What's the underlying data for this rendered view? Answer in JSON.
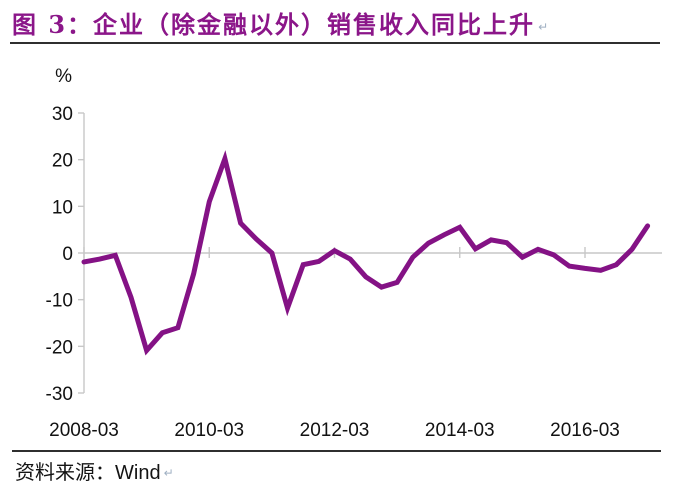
{
  "page": {
    "title": "图 3：企业（除金融以外）销售收入同比上升",
    "paragraph_mark": "↵",
    "source_prefix": "资料来源：",
    "source_name": "Wind"
  },
  "colors": {
    "title": "#8B1689",
    "line": "#841285",
    "axis": "#C7C7C7",
    "axis_text": "#121212",
    "rule": "#2F2F2F"
  },
  "chart_data": {
    "type": "line",
    "title": "企业（除金融以外）销售收入同比上升",
    "unit_label": "%",
    "ylabel": "%",
    "xlabel": "",
    "ylim": [
      -30,
      30
    ],
    "y_ticks": [
      30,
      20,
      10,
      0,
      -10,
      -20,
      -30
    ],
    "x_tick_labels": [
      "2008-03",
      "2010-03",
      "2012-03",
      "2014-03",
      "2016-03"
    ],
    "x_tick_indices": [
      0,
      8,
      16,
      24,
      32
    ],
    "grid": "zero-line-only",
    "legend": "none",
    "series": [
      {
        "name": "企业（除金融以外）销售收入同比（%）",
        "x": [
          "2008-03",
          "2008-06",
          "2008-09",
          "2008-12",
          "2009-03",
          "2009-06",
          "2009-09",
          "2009-12",
          "2010-03",
          "2010-06",
          "2010-09",
          "2010-12",
          "2011-03",
          "2011-06",
          "2011-09",
          "2011-12",
          "2012-03",
          "2012-06",
          "2012-09",
          "2012-12",
          "2013-03",
          "2013-06",
          "2013-09",
          "2013-12",
          "2014-03",
          "2014-06",
          "2014-09",
          "2014-12",
          "2015-03",
          "2015-06",
          "2015-09",
          "2015-12",
          "2016-03",
          "2016-06",
          "2016-09",
          "2016-12",
          "2017-03"
        ],
        "values": [
          -1.9,
          -1.3,
          -0.5,
          -9.5,
          -20.9,
          -17.1,
          -16.0,
          -4.5,
          11.0,
          20.2,
          6.4,
          3.0,
          0.0,
          -11.8,
          -2.5,
          -1.8,
          0.5,
          -1.3,
          -5.1,
          -7.3,
          -6.3,
          -0.9,
          2.1,
          3.9,
          5.5,
          0.9,
          2.8,
          2.2,
          -0.9,
          0.8,
          -0.4,
          -2.8,
          -3.3,
          -3.7,
          -2.5,
          0.8,
          5.8
        ]
      }
    ]
  }
}
